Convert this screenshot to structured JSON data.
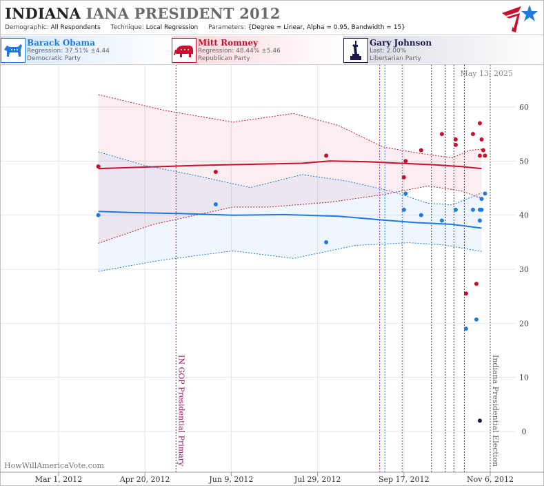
{
  "header": {
    "state": "INDIANA",
    "race": "IANA PRESIDENT 2012",
    "demographic_label": "Demographic:",
    "demographic_value": "All Respondents",
    "technique_label": "Technique:",
    "technique_value": "Local Regression",
    "parameters_label": "Parameters:",
    "parameters_value": "{Degree = Linear, Alpha = 0.95, Bandwidth = 15}"
  },
  "candidates": [
    {
      "name": "Barack Obama",
      "stat": "Regression: 37.51% ±4.44",
      "party": "Democratic Party",
      "color": "#1f7ae0",
      "icon": "donkey-icon"
    },
    {
      "name": "Mitt Romney",
      "stat": "Regression: 48.44% ±5.46",
      "party": "Republican Party",
      "color": "#c8102e",
      "icon": "elephant-icon"
    },
    {
      "name": "Gary Johnson",
      "stat": "Last: 2.00%",
      "party": "Libertarian Party",
      "color": "#1a1a4e",
      "icon": "statue-of-liberty-icon"
    }
  ],
  "date_stamp": "May 13, 2025",
  "watermark": "HowWillAmericaVote.com",
  "chart_data": {
    "type": "line",
    "x_ticks": [
      "Mar 1, 2012",
      "Apr 20, 2012",
      "Jun 9, 2012",
      "Jul 29, 2012",
      "Sep 17, 2012",
      "Nov 6, 2012"
    ],
    "ylim": [
      -7,
      67
    ],
    "y_ticks": [
      0,
      10,
      20,
      30,
      40,
      50,
      60
    ],
    "grid": true,
    "series": [
      {
        "name": "Mitt Romney",
        "color": "#c8102e",
        "trend": [
          [
            "2012-03-24",
            48.6
          ],
          [
            "2012-04-20",
            48.9
          ],
          [
            "2012-05-20",
            49.2
          ],
          [
            "2012-06-20",
            49.4
          ],
          [
            "2012-07-20",
            49.6
          ],
          [
            "2012-08-05",
            50.0
          ],
          [
            "2012-08-25",
            49.9
          ],
          [
            "2012-09-15",
            49.6
          ],
          [
            "2012-10-05",
            49.3
          ],
          [
            "2012-10-20",
            49.0
          ],
          [
            "2012-11-01",
            48.6
          ]
        ],
        "upper": [
          [
            "2012-03-24",
            62.3
          ],
          [
            "2012-05-01",
            59.4
          ],
          [
            "2012-06-10",
            57.2
          ],
          [
            "2012-07-15",
            58.8
          ],
          [
            "2012-08-10",
            56.6
          ],
          [
            "2012-09-05",
            52.6
          ],
          [
            "2012-09-25",
            51.5
          ],
          [
            "2012-10-15",
            50.6
          ],
          [
            "2012-10-25",
            52.0
          ],
          [
            "2012-11-01",
            52.2
          ]
        ],
        "lower": [
          [
            "2012-03-24",
            34.8
          ],
          [
            "2012-04-25",
            38.3
          ],
          [
            "2012-06-10",
            41.5
          ],
          [
            "2012-07-01",
            41.5
          ],
          [
            "2012-08-05",
            42.4
          ],
          [
            "2012-09-05",
            43.8
          ],
          [
            "2012-10-01",
            45.4
          ],
          [
            "2012-10-20",
            44.5
          ],
          [
            "2012-11-01",
            43.1
          ]
        ],
        "points": [
          [
            "2012-03-24",
            49
          ],
          [
            "2012-05-31",
            48
          ],
          [
            "2012-08-03",
            51
          ],
          [
            "2012-09-18",
            50
          ],
          [
            "2012-09-17",
            47
          ],
          [
            "2012-09-27",
            52
          ],
          [
            "2012-10-09",
            55
          ],
          [
            "2012-10-17",
            54
          ],
          [
            "2012-10-17",
            53
          ],
          [
            "2012-10-23",
            25.5
          ],
          [
            "2012-10-27",
            55
          ],
          [
            "2012-10-29",
            27.3
          ],
          [
            "2012-10-31",
            57
          ],
          [
            "2012-10-31",
            51
          ],
          [
            "2012-11-01",
            54
          ],
          [
            "2012-11-02",
            52
          ],
          [
            "2012-11-03",
            51
          ]
        ]
      },
      {
        "name": "Barack Obama",
        "color": "#1f7ae0",
        "trend": [
          [
            "2012-03-24",
            40.7
          ],
          [
            "2012-04-10",
            40.5
          ],
          [
            "2012-05-10",
            40.3
          ],
          [
            "2012-06-10",
            40.0
          ],
          [
            "2012-07-10",
            40.1
          ],
          [
            "2012-08-10",
            39.8
          ],
          [
            "2012-09-05",
            39.1
          ],
          [
            "2012-09-25",
            38.6
          ],
          [
            "2012-10-15",
            38.3
          ],
          [
            "2012-11-01",
            37.6
          ]
        ],
        "upper": [
          [
            "2012-03-24",
            51.7
          ],
          [
            "2012-04-20",
            49.2
          ],
          [
            "2012-05-20",
            47.3
          ],
          [
            "2012-06-20",
            45.1
          ],
          [
            "2012-07-20",
            47.5
          ],
          [
            "2012-08-15",
            46.3
          ],
          [
            "2012-09-10",
            44.4
          ],
          [
            "2012-10-01",
            42.2
          ],
          [
            "2012-10-15",
            41.9
          ],
          [
            "2012-11-01",
            44.1
          ]
        ],
        "lower": [
          [
            "2012-03-24",
            29.6
          ],
          [
            "2012-04-30",
            31.7
          ],
          [
            "2012-06-10",
            33.4
          ],
          [
            "2012-07-15",
            32.0
          ],
          [
            "2012-08-20",
            34.4
          ],
          [
            "2012-09-20",
            34.9
          ],
          [
            "2012-10-10",
            34.5
          ],
          [
            "2012-11-01",
            33.3
          ]
        ],
        "points": [
          [
            "2012-03-24",
            40
          ],
          [
            "2012-05-31",
            42
          ],
          [
            "2012-08-03",
            35
          ],
          [
            "2012-09-17",
            41
          ],
          [
            "2012-09-18",
            44
          ],
          [
            "2012-09-27",
            40
          ],
          [
            "2012-10-09",
            39
          ],
          [
            "2012-10-17",
            41
          ],
          [
            "2012-10-23",
            19
          ],
          [
            "2012-10-27",
            41
          ],
          [
            "2012-10-29",
            20.7
          ],
          [
            "2012-10-31",
            41
          ],
          [
            "2012-10-31",
            39
          ],
          [
            "2012-11-01",
            41
          ],
          [
            "2012-11-01",
            43
          ],
          [
            "2012-11-03",
            44
          ]
        ]
      },
      {
        "name": "Gary Johnson",
        "color": "#1a1a4e",
        "points": [
          [
            "2012-10-31",
            2
          ]
        ]
      }
    ],
    "events": [
      {
        "date": "2012-05-08",
        "label": "IN GOP Presidential Primary",
        "color": "#a0105a"
      },
      {
        "date": "2012-11-06",
        "label": "Indiana Presidential Election",
        "color": "#666666"
      }
    ],
    "marker_dates": [
      {
        "date": "2012-09-03",
        "color": "#8a2be2"
      },
      {
        "date": "2012-09-06",
        "color": "#1f7ae0"
      },
      {
        "date": "2012-09-16",
        "color": "#1f7ae0"
      },
      {
        "date": "2012-10-03",
        "color": "#333333"
      },
      {
        "date": "2012-10-11",
        "color": "#333333"
      },
      {
        "date": "2012-10-16",
        "color": "#333333"
      },
      {
        "date": "2012-10-22",
        "color": "#333333"
      }
    ]
  }
}
